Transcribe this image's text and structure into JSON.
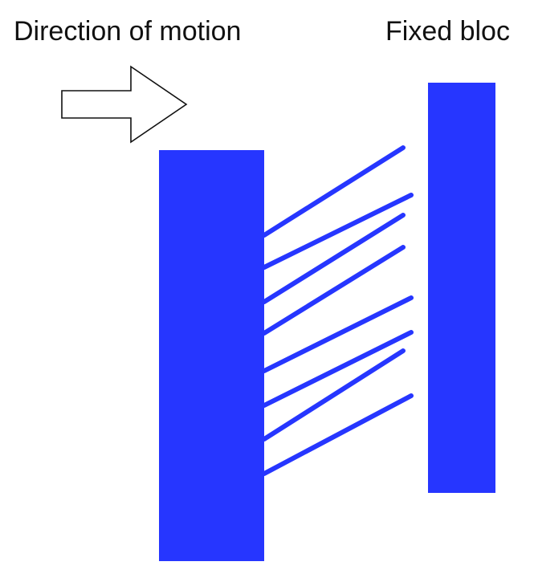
{
  "labels": {
    "direction": "Direction of motion",
    "fixed": "Fixed bloc"
  },
  "colors": {
    "block": "#2636FF",
    "arrow_stroke": "#111111",
    "arrow_fill": "#FFFFFF",
    "text": "#111111"
  },
  "fiber_count": 8
}
